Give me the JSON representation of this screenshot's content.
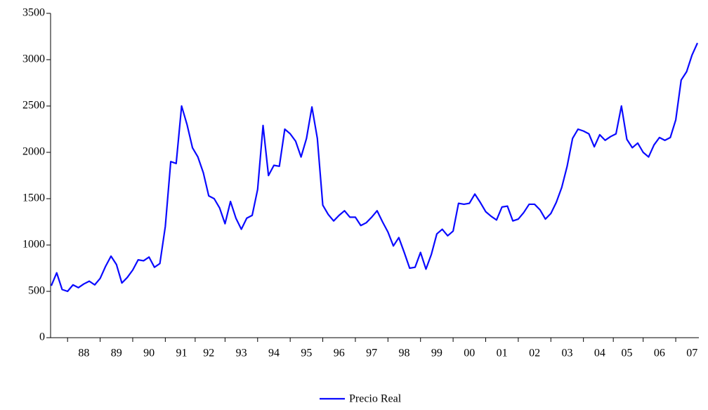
{
  "chart_data": {
    "type": "line",
    "categories": [
      null,
      null,
      null,
      null,
      null,
      null,
      "88",
      null,
      null,
      null,
      null,
      null,
      "89",
      null,
      null,
      null,
      null,
      null,
      "90",
      null,
      null,
      null,
      null,
      null,
      "91",
      null,
      null,
      null,
      null,
      "92",
      null,
      null,
      null,
      null,
      null,
      "93",
      null,
      null,
      null,
      null,
      null,
      "94",
      null,
      null,
      null,
      null,
      null,
      "95",
      null,
      null,
      null,
      null,
      null,
      "96",
      null,
      null,
      null,
      null,
      null,
      "97",
      null,
      null,
      null,
      null,
      null,
      "98",
      null,
      null,
      null,
      null,
      null,
      "99",
      null,
      null,
      null,
      null,
      null,
      "00",
      null,
      null,
      null,
      null,
      null,
      "01",
      null,
      null,
      null,
      null,
      null,
      "02",
      null,
      null,
      null,
      null,
      null,
      "03",
      null,
      null,
      null,
      null,
      null,
      "04",
      null,
      null,
      null,
      null,
      "05",
      null,
      null,
      null,
      null,
      null,
      "06",
      null,
      null,
      null,
      null,
      null,
      "07",
      null
    ],
    "series": [
      {
        "name": "Precio Real",
        "color": "#0a0aff",
        "values": [
          560,
          700,
          520,
          500,
          570,
          540,
          580,
          610,
          570,
          640,
          770,
          880,
          790,
          590,
          650,
          730,
          840,
          830,
          870,
          760,
          800,
          1200,
          1900,
          1880,
          2500,
          2300,
          2050,
          1950,
          1780,
          1530,
          1500,
          1400,
          1230,
          1470,
          1290,
          1170,
          1290,
          1320,
          1600,
          2290,
          1750,
          1860,
          1850,
          2250,
          2200,
          2120,
          1950,
          2150,
          2490,
          2150,
          1430,
          1330,
          1260,
          1320,
          1370,
          1300,
          1300,
          1210,
          1240,
          1300,
          1370,
          1250,
          1140,
          990,
          1080,
          920,
          750,
          760,
          920,
          740,
          900,
          1120,
          1170,
          1100,
          1150,
          1450,
          1440,
          1450,
          1550,
          1460,
          1360,
          1310,
          1270,
          1410,
          1420,
          1260,
          1280,
          1350,
          1440,
          1440,
          1380,
          1280,
          1340,
          1460,
          1620,
          1850,
          2150,
          2250,
          2230,
          2200,
          2060,
          2190,
          2130,
          2170,
          2200,
          2500,
          2140,
          2050,
          2100,
          2000,
          1950,
          2080,
          2160,
          2130,
          2160,
          2350,
          2780,
          2870,
          3050,
          3180
        ]
      }
    ],
    "ylim": [
      0,
      3500
    ],
    "yticks": [
      0,
      500,
      1000,
      1500,
      2000,
      2500,
      3000,
      3500
    ],
    "grid": false,
    "legend": "bottom"
  }
}
